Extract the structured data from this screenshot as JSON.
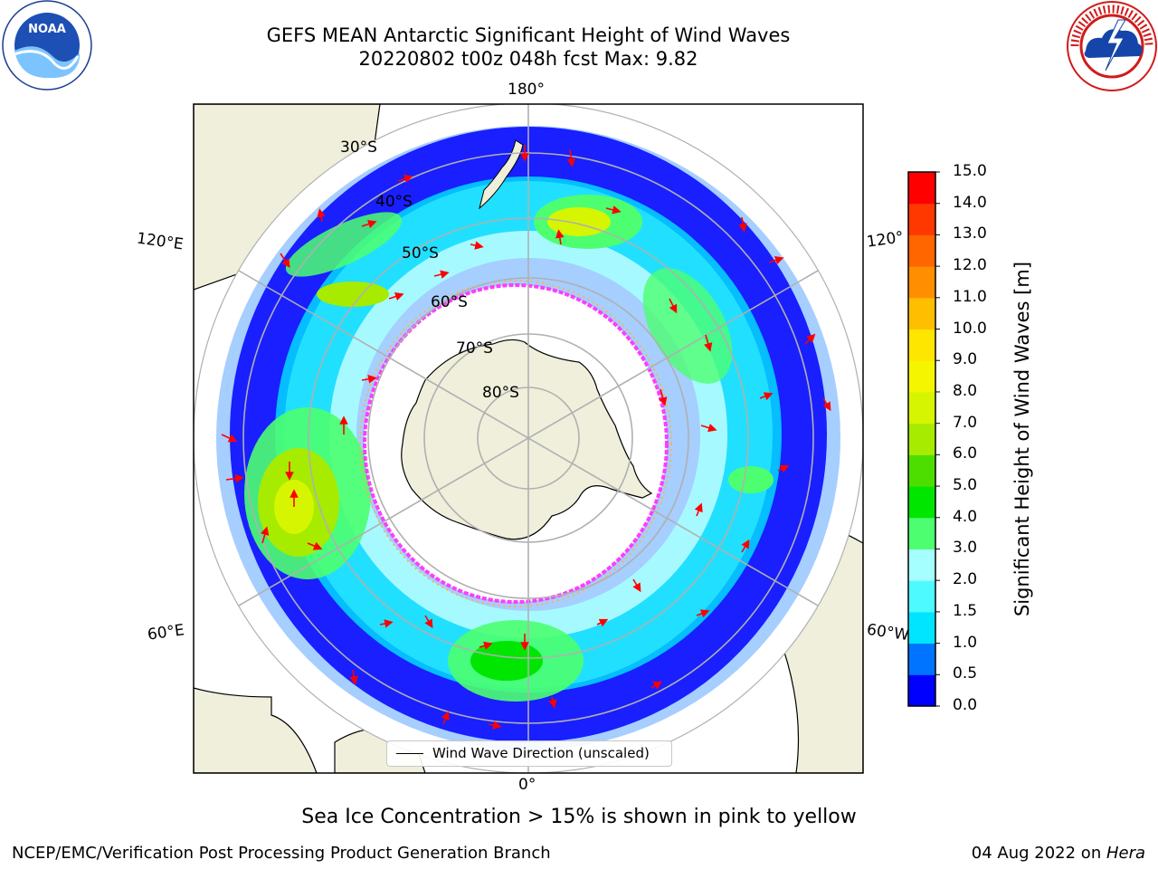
{
  "header": {
    "title_line1": "GEFS MEAN Antarctic Significant Height of Wind Waves",
    "title_line2": "20220802 t00z 048h fcst   Max: 9.82"
  },
  "logos": {
    "left": "NOAA",
    "right": "NATIONAL WEATHER SERVICE"
  },
  "map": {
    "projection": "south-polar-stereographic",
    "longitude_labels": {
      "top": "180°",
      "bottom": "0°",
      "left_upper": "120°E",
      "left_lower": "60°E",
      "right_upper": "120°",
      "right_lower": "60°W"
    },
    "latitude_labels": [
      "30°S",
      "40°S",
      "50°S",
      "60°S",
      "70°S",
      "80°S"
    ],
    "legend": "Wind Wave Direction (unscaled)",
    "colors": {
      "land": "#efefdc",
      "ocean_no_data": "#ffffff",
      "grid": "#b0b0b0",
      "arrow": "#ff0000",
      "ice_edge": "#ff3cff"
    }
  },
  "colorbar": {
    "label": "Significant Height of Wind Waves [m]",
    "ticks": [
      "0.0",
      "0.5",
      "1.0",
      "1.5",
      "2.0",
      "3.0",
      "4.0",
      "5.0",
      "6.0",
      "7.0",
      "8.0",
      "9.0",
      "10.0",
      "11.0",
      "12.0",
      "13.0",
      "14.0",
      "15.0"
    ],
    "colors": [
      "#0000ff",
      "#0073ff",
      "#00e5ff",
      "#4dfaff",
      "#a6ffff",
      "#4dff70",
      "#00e600",
      "#4dde00",
      "#a6eb00",
      "#d6f500",
      "#f5f500",
      "#ffe600",
      "#ffbf00",
      "#ff8f00",
      "#ff6600",
      "#ff3800",
      "#ff0000"
    ]
  },
  "note": "Sea Ice Concentration > 15% is shown in pink to yellow",
  "footer": {
    "left": "NCEP/EMC/Verification Post Processing Product Generation Branch",
    "right_prefix": "04 Aug 2022 on ",
    "right_machine": "Hera"
  }
}
